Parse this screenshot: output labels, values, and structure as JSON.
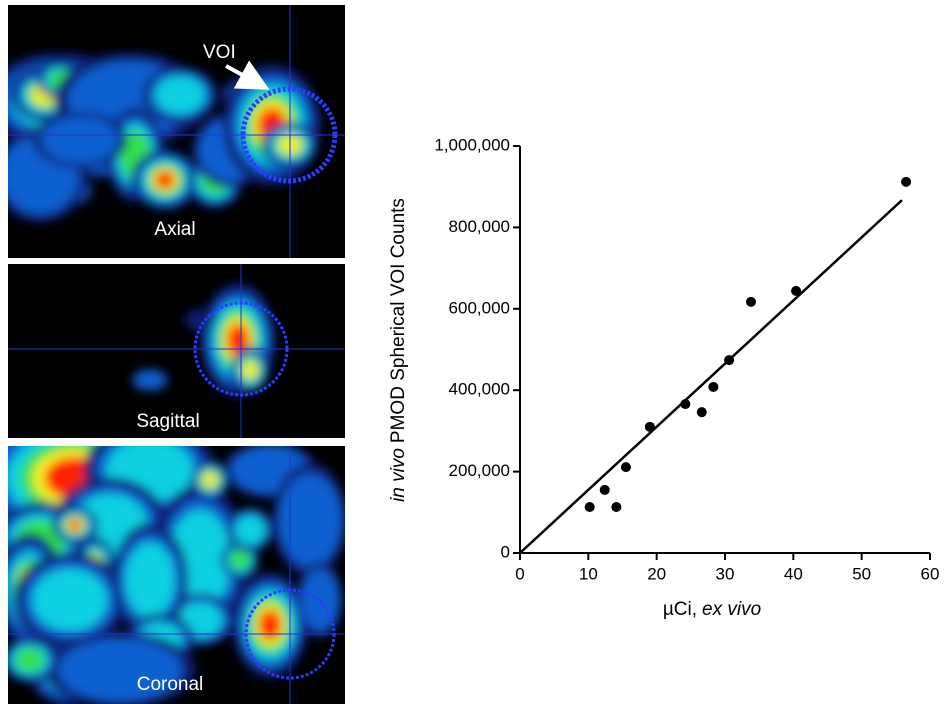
{
  "images": {
    "voi_label": "VOI",
    "axial_label": "Axial",
    "sagittal_label": "Sagittal",
    "coronal_label": "Coronal"
  },
  "chart_data": {
    "type": "scatter",
    "ylabel_italic": "in vivo",
    "ylabel": "PMOD Spherical VOI Counts",
    "xlabel": "µCi,",
    "xlabel_italic": "ex vivo",
    "xlim": [
      0,
      60
    ],
    "xticks": [
      0,
      10,
      20,
      30,
      40,
      50,
      60
    ],
    "ylim": [
      0,
      1000000
    ],
    "yticks": [
      0,
      {
        "value": 200000,
        "label": "200,000"
      },
      {
        "value": 400000,
        "label": "400,000"
      },
      {
        "value": 600000,
        "label": "600,000"
      },
      {
        "value": 800000,
        "label": "800,000"
      },
      {
        "value": 1000000,
        "label": "1,000,000"
      }
    ],
    "color": "#000000",
    "series": [
      {
        "x": [
          10.2,
          12.4,
          14.1,
          15.5,
          19.0,
          24.2,
          26.6,
          28.3,
          30.6,
          33.8,
          40.4,
          56.5
        ],
        "values": [
          113000,
          155000,
          113000,
          211000,
          310000,
          366000,
          346000,
          408000,
          474000,
          617000,
          644000,
          912000
        ]
      }
    ],
    "fit_line": {
      "x": [
        0,
        55.9
      ],
      "values": [
        0,
        867000
      ]
    }
  }
}
